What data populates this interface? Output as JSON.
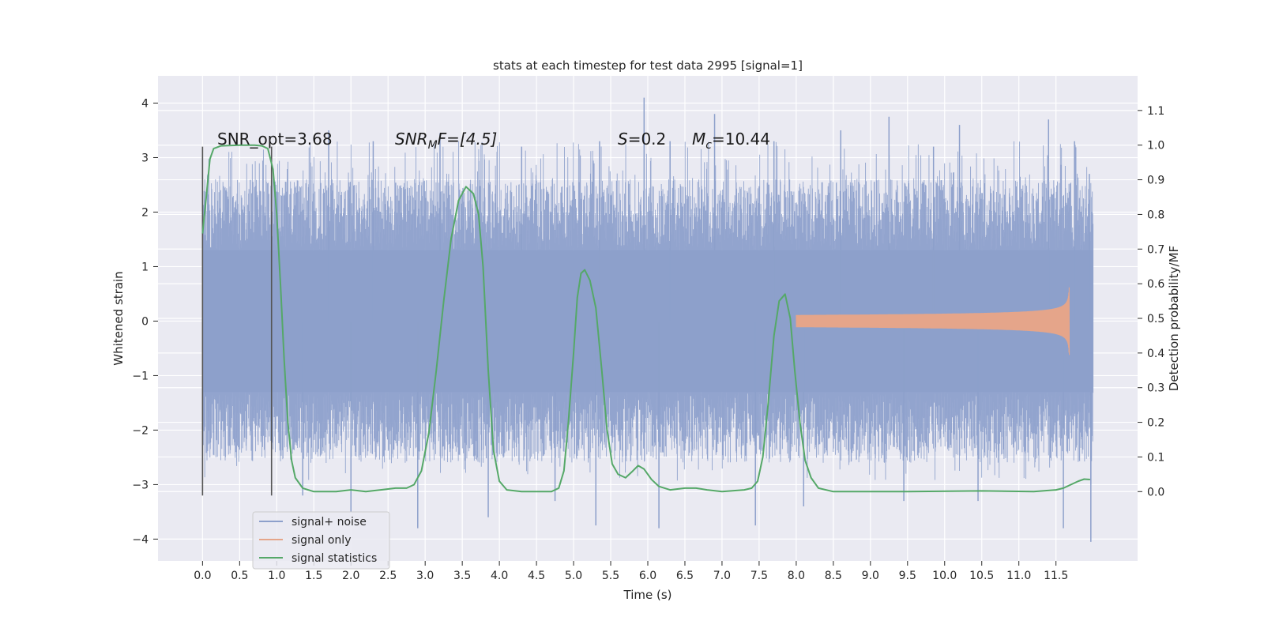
{
  "chart_data": {
    "type": "line",
    "title": "stats at each timestep for test data 2995 [signal=1]",
    "xlabel": "Time (s)",
    "ylabel": "Whitened strain",
    "ylabel_right": "Detection probability/MF",
    "xlim": [
      -0.6,
      12.6
    ],
    "ylim": [
      -4.4,
      4.5
    ],
    "ylim_right": [
      -0.2,
      1.2
    ],
    "x_ticks": [
      0.0,
      0.5,
      1.0,
      1.5,
      2.0,
      2.5,
      3.0,
      3.5,
      4.0,
      4.5,
      5.0,
      5.5,
      6.0,
      6.5,
      7.0,
      7.5,
      8.0,
      8.5,
      9.0,
      9.5,
      10.0,
      10.5,
      11.0,
      11.5
    ],
    "x_tick_labels": [
      "0.0",
      "0.5",
      "1.0",
      "1.5",
      "2.0",
      "2.5",
      "3.0",
      "3.5",
      "4.0",
      "4.5",
      "5.0",
      "5.5",
      "6.0",
      "6.5",
      "7.0",
      "7.5",
      "8.0",
      "8.5",
      "9.0",
      "9.5",
      "10.0",
      "10.5",
      "11.0",
      "11.5"
    ],
    "y_ticks": [
      -4,
      -3,
      -2,
      -1,
      0,
      1,
      2,
      3,
      4
    ],
    "y_tick_labels": [
      "−4",
      "−3",
      "−2",
      "−1",
      "0",
      "1",
      "2",
      "3",
      "4"
    ],
    "y_right_ticks": [
      0.0,
      0.1,
      0.2,
      0.3,
      0.4,
      0.5,
      0.6,
      0.7,
      0.8,
      0.9,
      1.0,
      1.1
    ],
    "y_right_tick_labels": [
      "0.0",
      "0.1",
      "0.2",
      "0.3",
      "0.4",
      "0.5",
      "0.6",
      "0.7",
      "0.8",
      "0.9",
      "1.0",
      "1.1"
    ],
    "grid": true,
    "legend_position": "lower-left",
    "annotations": {
      "snr_opt": "SNR_opt=3.68",
      "snr_mf_sym": "SNR",
      "snr_mf_sub": "M",
      "snr_mf_rest": "F=[4.5]",
      "s_sym": "S",
      "s_rest": "=0.2",
      "mc_sym": "M",
      "mc_sub": "c",
      "mc_rest": "=10.44"
    },
    "vertical_markers": [
      {
        "x": 0.0,
        "y_range": [
          -3.2,
          3.2
        ]
      },
      {
        "x": 0.93,
        "y_range": [
          -3.2,
          3.2
        ]
      }
    ],
    "series": [
      {
        "name": "signal+ noise",
        "color": "#8da0cb",
        "axis": "left",
        "x_range": [
          0.0,
          12.0
        ],
        "envelope_core": [
          -1.3,
          1.3
        ],
        "envelope_typical": [
          -2.6,
          2.6
        ],
        "spikes": [
          {
            "x": 5.95,
            "y": 4.1
          },
          {
            "x": 6.9,
            "y": 3.8
          },
          {
            "x": 9.25,
            "y": 3.75
          },
          {
            "x": 11.4,
            "y": 3.7
          },
          {
            "x": 10.2,
            "y": 3.6
          },
          {
            "x": 1.7,
            "y": 3.5
          },
          {
            "x": 3.2,
            "y": 3.45
          },
          {
            "x": 8.6,
            "y": 3.5
          },
          {
            "x": 11.75,
            "y": 3.3
          },
          {
            "x": 4.3,
            "y": 3.2
          },
          {
            "x": 5.35,
            "y": 3.3
          },
          {
            "x": 7.7,
            "y": 3.3
          },
          {
            "x": 2.3,
            "y": 3.3
          },
          {
            "x": 6.3,
            "y": 3.3
          },
          {
            "x": 9.85,
            "y": 3.2
          },
          {
            "x": 11.97,
            "y": -4.05
          },
          {
            "x": 5.3,
            "y": -3.75
          },
          {
            "x": 6.15,
            "y": -3.8
          },
          {
            "x": 2.9,
            "y": -3.8
          },
          {
            "x": 11.6,
            "y": -3.8
          },
          {
            "x": 7.45,
            "y": -3.75
          },
          {
            "x": 3.85,
            "y": -3.6
          },
          {
            "x": 2.0,
            "y": -3.5
          },
          {
            "x": 8.1,
            "y": -3.4
          },
          {
            "x": 4.75,
            "y": -3.3
          },
          {
            "x": 10.45,
            "y": -3.3
          },
          {
            "x": 9.45,
            "y": -3.3
          },
          {
            "x": 1.35,
            "y": -3.2
          },
          {
            "x": 11.95,
            "y": 2.7
          },
          {
            "x": 11.97,
            "y": -3.0
          }
        ]
      },
      {
        "name": "signal only",
        "color": "#e5a58a",
        "axis": "left",
        "chirp_start": 8.0,
        "chirp_end": 11.68,
        "chirp_peak_amplitude": 0.62,
        "chirp_final": -0.55
      },
      {
        "name": "signal statistics",
        "color": "#55a868",
        "axis": "right",
        "points": [
          [
            0.0,
            0.745
          ],
          [
            0.05,
            0.85
          ],
          [
            0.1,
            0.96
          ],
          [
            0.15,
            0.99
          ],
          [
            0.25,
            0.998
          ],
          [
            0.5,
            1.0
          ],
          [
            0.7,
            1.0
          ],
          [
            0.8,
            0.998
          ],
          [
            0.88,
            0.99
          ],
          [
            0.95,
            0.93
          ],
          [
            1.0,
            0.8
          ],
          [
            1.05,
            0.6
          ],
          [
            1.1,
            0.38
          ],
          [
            1.15,
            0.2
          ],
          [
            1.2,
            0.09
          ],
          [
            1.25,
            0.04
          ],
          [
            1.35,
            0.01
          ],
          [
            1.5,
            0.0
          ],
          [
            1.8,
            0.0
          ],
          [
            2.0,
            0.005
          ],
          [
            2.2,
            0.0
          ],
          [
            2.4,
            0.005
          ],
          [
            2.6,
            0.01
          ],
          [
            2.75,
            0.01
          ],
          [
            2.85,
            0.02
          ],
          [
            2.95,
            0.06
          ],
          [
            3.05,
            0.17
          ],
          [
            3.15,
            0.35
          ],
          [
            3.25,
            0.55
          ],
          [
            3.35,
            0.73
          ],
          [
            3.45,
            0.84
          ],
          [
            3.55,
            0.88
          ],
          [
            3.65,
            0.86
          ],
          [
            3.72,
            0.8
          ],
          [
            3.78,
            0.65
          ],
          [
            3.85,
            0.35
          ],
          [
            3.92,
            0.12
          ],
          [
            4.0,
            0.03
          ],
          [
            4.1,
            0.005
          ],
          [
            4.3,
            0.0
          ],
          [
            4.7,
            0.0
          ],
          [
            4.8,
            0.01
          ],
          [
            4.87,
            0.06
          ],
          [
            4.93,
            0.2
          ],
          [
            5.0,
            0.4
          ],
          [
            5.05,
            0.56
          ],
          [
            5.1,
            0.63
          ],
          [
            5.15,
            0.64
          ],
          [
            5.22,
            0.61
          ],
          [
            5.3,
            0.53
          ],
          [
            5.38,
            0.35
          ],
          [
            5.45,
            0.18
          ],
          [
            5.52,
            0.08
          ],
          [
            5.6,
            0.05
          ],
          [
            5.7,
            0.04
          ],
          [
            5.8,
            0.06
          ],
          [
            5.87,
            0.075
          ],
          [
            5.95,
            0.065
          ],
          [
            6.05,
            0.035
          ],
          [
            6.15,
            0.015
          ],
          [
            6.3,
            0.005
          ],
          [
            6.5,
            0.01
          ],
          [
            6.65,
            0.01
          ],
          [
            6.8,
            0.005
          ],
          [
            7.0,
            0.0
          ],
          [
            7.3,
            0.005
          ],
          [
            7.4,
            0.01
          ],
          [
            7.48,
            0.03
          ],
          [
            7.55,
            0.1
          ],
          [
            7.62,
            0.25
          ],
          [
            7.7,
            0.45
          ],
          [
            7.77,
            0.55
          ],
          [
            7.85,
            0.57
          ],
          [
            7.92,
            0.5
          ],
          [
            7.98,
            0.35
          ],
          [
            8.05,
            0.2
          ],
          [
            8.12,
            0.09
          ],
          [
            8.2,
            0.04
          ],
          [
            8.3,
            0.01
          ],
          [
            8.5,
            0.0
          ],
          [
            9.5,
            0.0
          ],
          [
            10.5,
            0.002
          ],
          [
            11.2,
            0.0
          ],
          [
            11.5,
            0.005
          ],
          [
            11.6,
            0.01
          ],
          [
            11.7,
            0.02
          ],
          [
            11.8,
            0.03
          ],
          [
            11.88,
            0.036
          ],
          [
            11.96,
            0.035
          ]
        ]
      }
    ]
  }
}
